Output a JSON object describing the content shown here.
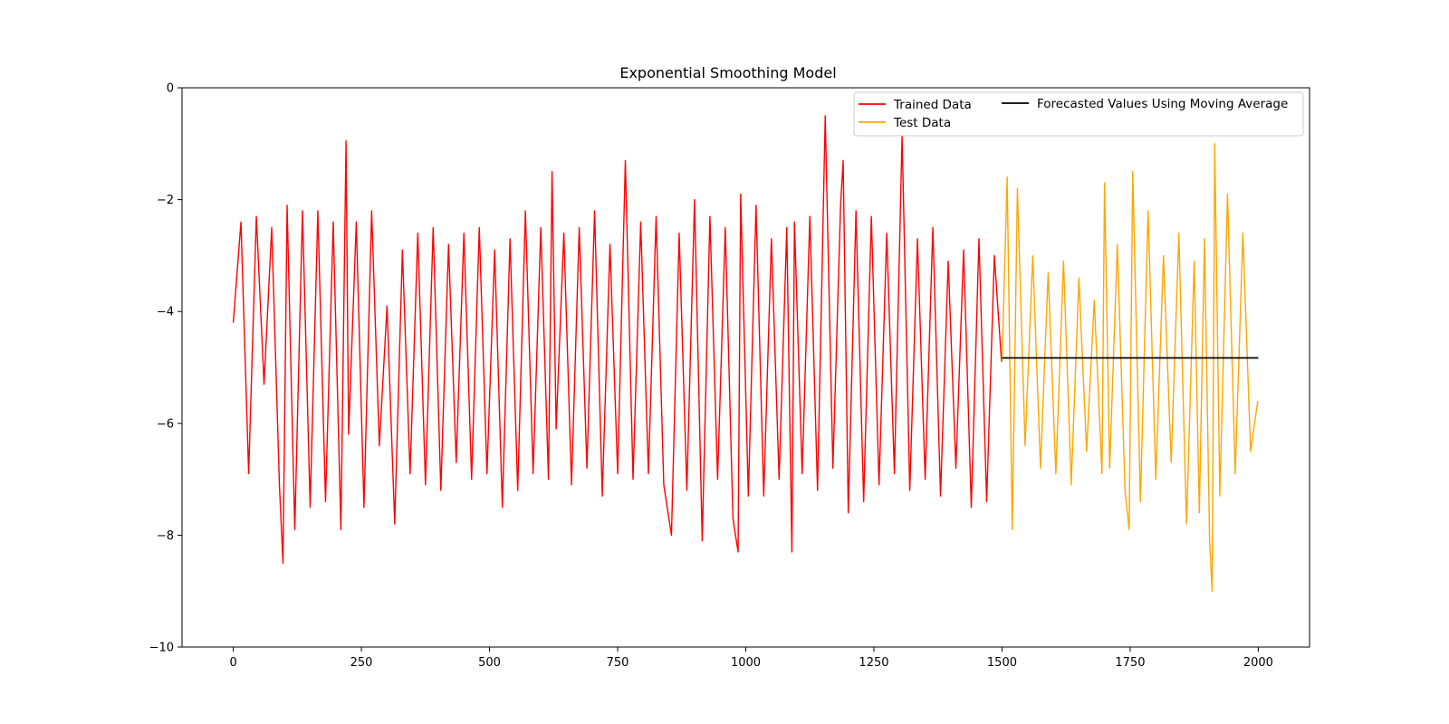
{
  "chart_data": {
    "type": "line",
    "title": "Exponential Smoothing Model",
    "xlabel": "",
    "ylabel": "",
    "xlim": [
      -100,
      2100
    ],
    "ylim": [
      -10,
      0
    ],
    "xticks": [
      0,
      250,
      500,
      750,
      1000,
      1250,
      1500,
      1750,
      2000
    ],
    "yticks": [
      0,
      -2,
      -4,
      -6,
      -8,
      -10
    ],
    "xtick_labels": [
      "0",
      "250",
      "500",
      "750",
      "1000",
      "1250",
      "1500",
      "1750",
      "2000"
    ],
    "ytick_labels": [
      "0",
      "−2",
      "−4",
      "−6",
      "−8",
      "−10"
    ],
    "grid": false,
    "legend_position": "top-right",
    "series": [
      {
        "name": "Trained Data",
        "color": "#ff0000",
        "x": [
          0,
          15,
          30,
          45,
          60,
          75,
          90,
          97,
          105,
          120,
          135,
          150,
          165,
          180,
          195,
          210,
          220,
          225,
          240,
          255,
          270,
          285,
          300,
          315,
          330,
          345,
          360,
          375,
          390,
          405,
          420,
          435,
          450,
          465,
          480,
          495,
          510,
          525,
          540,
          555,
          570,
          585,
          600,
          615,
          622,
          630,
          645,
          660,
          675,
          690,
          705,
          720,
          735,
          750,
          765,
          780,
          795,
          810,
          825,
          840,
          855,
          870,
          885,
          900,
          915,
          930,
          945,
          960,
          975,
          985,
          990,
          1005,
          1020,
          1035,
          1050,
          1065,
          1080,
          1090,
          1095,
          1110,
          1125,
          1140,
          1155,
          1170,
          1185,
          1190,
          1200,
          1215,
          1230,
          1245,
          1260,
          1275,
          1290,
          1305,
          1320,
          1335,
          1350,
          1365,
          1380,
          1395,
          1410,
          1425,
          1440,
          1455,
          1470,
          1485,
          1499
        ],
        "y": [
          -4.2,
          -2.4,
          -6.9,
          -2.3,
          -5.3,
          -2.5,
          -7.1,
          -8.5,
          -2.1,
          -7.9,
          -2.2,
          -7.5,
          -2.2,
          -7.4,
          -2.4,
          -7.9,
          -0.95,
          -6.2,
          -2.4,
          -7.5,
          -2.2,
          -6.4,
          -3.9,
          -7.8,
          -2.9,
          -6.9,
          -2.6,
          -7.1,
          -2.5,
          -7.2,
          -2.8,
          -6.7,
          -2.6,
          -7.0,
          -2.5,
          -6.9,
          -2.9,
          -7.5,
          -2.7,
          -7.2,
          -2.2,
          -6.9,
          -2.5,
          -7.0,
          -1.5,
          -6.1,
          -2.6,
          -7.1,
          -2.5,
          -6.8,
          -2.2,
          -7.3,
          -2.8,
          -6.9,
          -1.3,
          -7.0,
          -2.4,
          -6.9,
          -2.3,
          -7.1,
          -8.0,
          -2.6,
          -7.2,
          -2.0,
          -8.1,
          -2.3,
          -7.0,
          -2.5,
          -7.7,
          -8.3,
          -1.9,
          -7.3,
          -2.1,
          -7.3,
          -2.7,
          -7.0,
          -2.5,
          -8.3,
          -2.4,
          -6.9,
          -2.3,
          -7.2,
          -0.5,
          -6.8,
          -2.1,
          -1.3,
          -7.6,
          -2.2,
          -7.4,
          -2.3,
          -7.1,
          -2.6,
          -6.9,
          -0.85,
          -7.2,
          -2.7,
          -7.0,
          -2.5,
          -7.3,
          -3.1,
          -6.8,
          -2.9,
          -7.5,
          -2.7,
          -7.4,
          -3.0,
          -4.9
        ]
      },
      {
        "name": "Test Data",
        "color": "#ffa500",
        "x": [
          1500,
          1510,
          1520,
          1530,
          1545,
          1560,
          1575,
          1590,
          1605,
          1620,
          1635,
          1650,
          1665,
          1680,
          1695,
          1700,
          1710,
          1725,
          1740,
          1748,
          1755,
          1770,
          1785,
          1800,
          1815,
          1830,
          1845,
          1860,
          1875,
          1885,
          1895,
          1905,
          1910,
          1915,
          1925,
          1940,
          1955,
          1970,
          1985,
          1999
        ],
        "y": [
          -4.9,
          -1.6,
          -7.9,
          -1.8,
          -6.4,
          -3.0,
          -6.8,
          -3.3,
          -6.9,
          -3.1,
          -7.1,
          -3.4,
          -6.5,
          -3.8,
          -6.9,
          -1.7,
          -6.8,
          -2.8,
          -7.2,
          -7.9,
          -1.5,
          -7.4,
          -2.2,
          -7.0,
          -3.0,
          -6.7,
          -2.6,
          -7.8,
          -3.1,
          -7.6,
          -2.7,
          -8.1,
          -9.0,
          -1.0,
          -7.3,
          -1.9,
          -6.9,
          -2.6,
          -6.5,
          -5.6
        ]
      },
      {
        "name": "Forecasted Values Using Moving Average",
        "color": "#000000",
        "x": [
          1500,
          2000
        ],
        "y": [
          -4.83,
          -4.83
        ]
      }
    ]
  }
}
